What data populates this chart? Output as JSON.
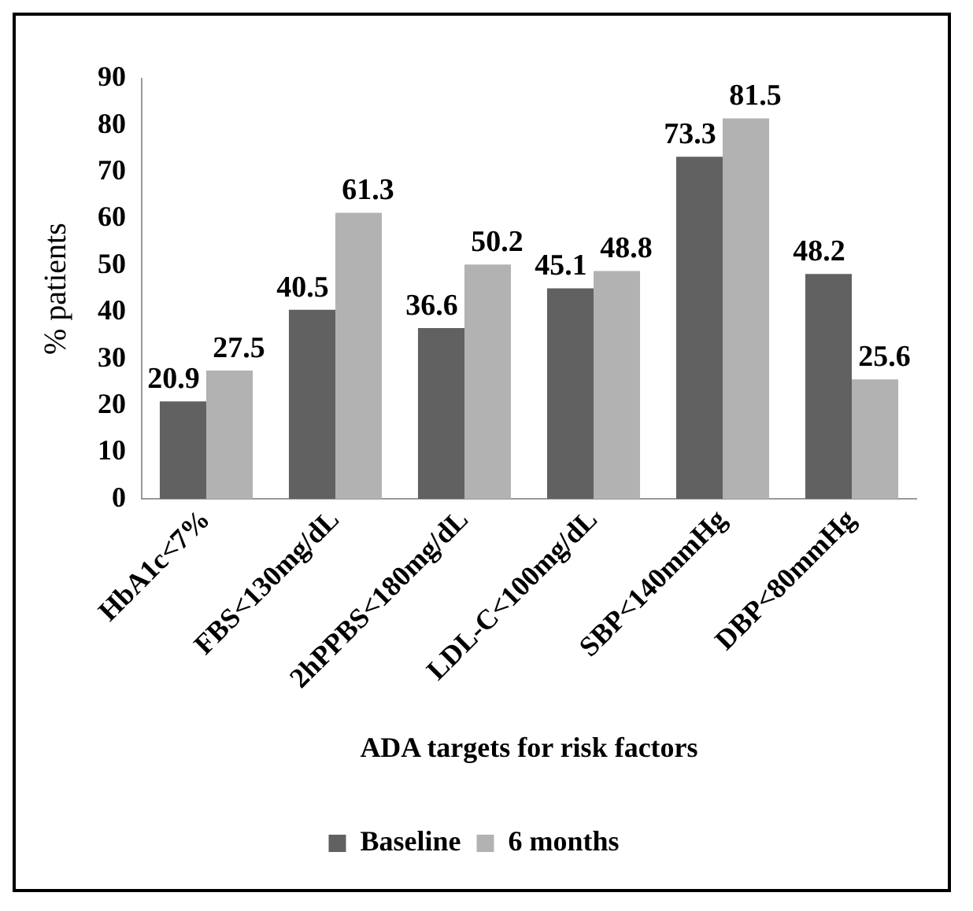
{
  "chart_data": {
    "type": "bar",
    "xlabel": "ADA targets for risk factors",
    "ylabel": "% patients",
    "categories": [
      "HbA1c<7%",
      "FBS<130mg/dL",
      "2hPPBS<180mg/dL",
      "LDL-C<100mg/dL",
      "SBP<140mmHg",
      "DBP<80mmHg"
    ],
    "series": [
      {
        "name": "Baseline",
        "color": "#616161",
        "values": [
          20.9,
          40.5,
          36.6,
          45.1,
          73.3,
          48.2
        ]
      },
      {
        "name": "6 months",
        "color": "#b2b2b2",
        "values": [
          27.5,
          61.3,
          50.2,
          48.8,
          81.5,
          25.6
        ]
      }
    ],
    "ylim": [
      0,
      90
    ],
    "yticks": [
      0,
      10,
      20,
      30,
      40,
      50,
      60,
      70,
      80,
      90
    ],
    "grid": false,
    "legend": "bottom",
    "data_labels": true
  }
}
